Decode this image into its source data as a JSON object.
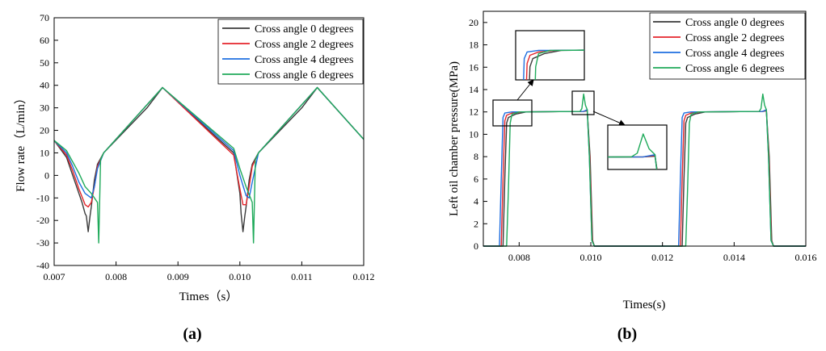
{
  "colors": {
    "0": "#3a3a3a",
    "2": "#e4252b",
    "4": "#1f6fe0",
    "6": "#1faa5a"
  },
  "chart_data": [
    {
      "type": "line",
      "panel": "(a)",
      "xlabel": "Times（s）",
      "ylabel": "Flow rate（L/min）",
      "xlim": [
        0.007,
        0.012
      ],
      "ylim": [
        -40,
        70
      ],
      "xticks": [
        "0.007",
        "0.008",
        "0.009",
        "0.010",
        "0.011",
        "0.012"
      ],
      "yticks": [
        "-40",
        "-30",
        "-20",
        "-10",
        "0",
        "10",
        "20",
        "30",
        "40",
        "50",
        "60",
        "70"
      ],
      "legend": "top-right",
      "series": [
        {
          "name": "Cross angle 0 degrees",
          "color_key": "0",
          "x": [
            0.007,
            0.0072,
            0.0073,
            0.0074,
            0.00745,
            0.0075,
            0.00752,
            0.00755,
            0.00758,
            0.0076,
            0.00765,
            0.0077,
            0.0078,
            0.0085,
            0.00875,
            0.0095,
            0.0099,
            0.01,
            0.01002,
            0.01005,
            0.01008,
            0.0101,
            0.01015,
            0.0102,
            0.0103,
            0.011,
            0.01125,
            0.012
          ],
          "y": [
            15.5,
            8,
            0,
            -8,
            -12,
            -17,
            -18,
            -25,
            -18,
            -14,
            -2,
            5,
            10,
            30,
            39,
            20,
            10,
            -8,
            -17,
            -25,
            -18,
            -14,
            -2,
            5,
            10,
            30,
            39,
            16
          ]
        },
        {
          "name": "Cross angle 2 degrees",
          "color_key": "2",
          "x": [
            0.007,
            0.0072,
            0.0073,
            0.0074,
            0.0075,
            0.00755,
            0.0076,
            0.00765,
            0.0077,
            0.0078,
            0.00875,
            0.0099,
            0.01,
            0.01005,
            0.0101,
            0.01015,
            0.0102,
            0.0103,
            0.01125,
            0.012
          ],
          "y": [
            15.5,
            9,
            2,
            -6,
            -13,
            -14,
            -12,
            -5,
            4,
            10,
            39,
            9,
            -6,
            -13,
            -13,
            -5,
            4,
            10,
            39,
            16
          ]
        },
        {
          "name": "Cross angle 4 degrees",
          "color_key": "4",
          "x": [
            0.007,
            0.0072,
            0.0073,
            0.0074,
            0.0075,
            0.0076,
            0.00765,
            0.0077,
            0.0078,
            0.00875,
            0.0099,
            0.01,
            0.0101,
            0.01015,
            0.0102,
            0.0103,
            0.01125,
            0.012
          ],
          "y": [
            15.5,
            10,
            4,
            -3,
            -8,
            -10,
            -5,
            3,
            10,
            39,
            11,
            0,
            -9,
            -10,
            -3,
            10,
            39,
            16
          ]
        },
        {
          "name": "Cross angle 6 degrees",
          "color_key": "6",
          "x": [
            0.007,
            0.0072,
            0.0073,
            0.0074,
            0.0075,
            0.0076,
            0.0077,
            0.00772,
            0.00775,
            0.0078,
            0.00875,
            0.0099,
            0.01,
            0.0101,
            0.0102,
            0.01022,
            0.01025,
            0.0103,
            0.01125,
            0.012
          ],
          "y": [
            15.5,
            11,
            6,
            1,
            -5,
            -8,
            -12,
            -30,
            7,
            10,
            39,
            12,
            3,
            -5,
            -12,
            -30,
            7,
            10,
            39,
            16
          ]
        }
      ]
    },
    {
      "type": "line",
      "panel": "(b)",
      "xlabel": "Times(s)",
      "ylabel": "Left oil chamber pressure(MPa)",
      "xlim": [
        0.007,
        0.016
      ],
      "ylim": [
        0,
        21
      ],
      "xticks": [
        "0.008",
        "0.010",
        "0.012",
        "0.014",
        "0.016"
      ],
      "yticks": [
        "0",
        "2",
        "4",
        "6",
        "8",
        "10",
        "12",
        "14",
        "16",
        "18",
        "20"
      ],
      "legend": "top-right",
      "series": [
        {
          "name": "Cross angle 0 degrees",
          "color_key": "0",
          "x": [
            0.007,
            0.00755,
            0.0076,
            0.00765,
            0.0077,
            0.0079,
            0.0082,
            0.0098,
            0.0099,
            0.00998,
            0.01005,
            0.0101,
            0.0103,
            0.01255,
            0.0126,
            0.01265,
            0.0127,
            0.0129,
            0.0132,
            0.0148,
            0.0149,
            0.01498,
            0.01505,
            0.0151,
            0.016
          ],
          "y": [
            0,
            0,
            6,
            11,
            11.5,
            11.8,
            12,
            12.05,
            12.1,
            8,
            0.5,
            0,
            0,
            0,
            6,
            11,
            11.5,
            11.8,
            12,
            12.05,
            12.1,
            8,
            0.5,
            0,
            0
          ]
        },
        {
          "name": "Cross angle 2 degrees",
          "color_key": "2",
          "x": [
            0.007,
            0.0075,
            0.00755,
            0.0076,
            0.00765,
            0.0078,
            0.0081,
            0.0098,
            0.0099,
            0.00997,
            0.01004,
            0.0101,
            0.0103,
            0.0125,
            0.01255,
            0.0126,
            0.01265,
            0.0128,
            0.0131,
            0.0148,
            0.0149,
            0.01497,
            0.01504,
            0.0151,
            0.016
          ],
          "y": [
            0,
            0,
            6,
            11.2,
            11.7,
            11.9,
            12,
            12.05,
            12.15,
            8,
            0.5,
            0,
            0,
            0,
            6,
            11.2,
            11.7,
            11.9,
            12,
            12.05,
            12.15,
            8,
            0.5,
            0,
            0
          ]
        },
        {
          "name": "Cross angle 4 degrees",
          "color_key": "4",
          "x": [
            0.007,
            0.00745,
            0.0075,
            0.00755,
            0.0076,
            0.0078,
            0.008,
            0.0098,
            0.0099,
            0.00996,
            0.01003,
            0.0101,
            0.0103,
            0.01245,
            0.0125,
            0.01255,
            0.0126,
            0.0128,
            0.013,
            0.0148,
            0.0149,
            0.01496,
            0.01503,
            0.0151,
            0.016
          ],
          "y": [
            0,
            0,
            6,
            11.5,
            11.9,
            12,
            12,
            12.05,
            12.2,
            8,
            0.5,
            0,
            0,
            0,
            6,
            11.5,
            11.9,
            12,
            12,
            12.05,
            12.2,
            8,
            0.5,
            0,
            0
          ]
        },
        {
          "name": "Cross angle 6 degrees",
          "color_key": "6",
          "x": [
            0.007,
            0.00765,
            0.0077,
            0.00775,
            0.0078,
            0.008,
            0.0082,
            0.0097,
            0.00975,
            0.0098,
            0.00985,
            0.0099,
            0.00996,
            0.01003,
            0.0101,
            0.0103,
            0.01265,
            0.0127,
            0.01275,
            0.0128,
            0.013,
            0.0132,
            0.0147,
            0.01475,
            0.0148,
            0.01485,
            0.0149,
            0.01496,
            0.01503,
            0.0151,
            0.016
          ],
          "y": [
            0,
            0,
            5,
            11,
            11.8,
            12,
            12,
            12.05,
            12.3,
            13.6,
            12.6,
            12.2,
            8,
            0.5,
            0,
            0,
            0,
            5,
            11,
            11.8,
            12,
            12,
            12.05,
            12.3,
            13.6,
            12.6,
            12.2,
            8,
            0.5,
            0,
            0
          ]
        }
      ]
    }
  ]
}
